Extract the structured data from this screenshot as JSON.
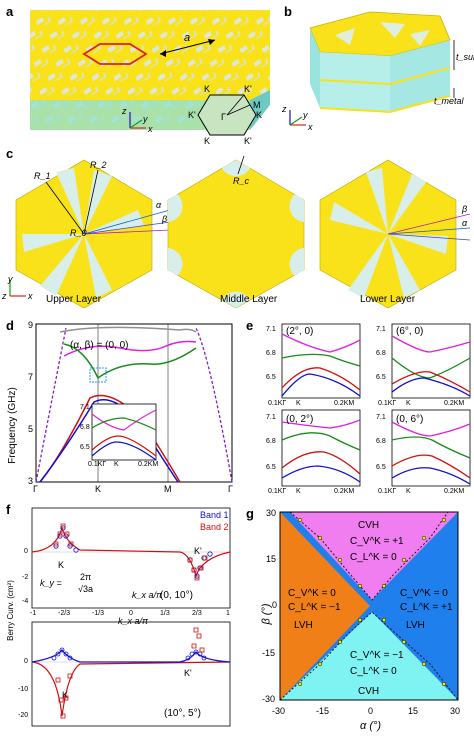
{
  "panels": {
    "a": {
      "letter": "a",
      "lattice_label": "a",
      "bz_labels": {
        "k1": "K",
        "k2": "K'",
        "g": "Γ",
        "m": "M",
        "k3": "K'",
        "k4": "K",
        "k5": "K",
        "k6": "K'"
      },
      "axes": {
        "z": "z",
        "y": "y",
        "x": "x"
      }
    },
    "b": {
      "letter": "b",
      "t_sub": "t_sub",
      "t_metal": "t_metal",
      "axes": {
        "z": "z",
        "y": "y",
        "x": "x"
      }
    },
    "c": {
      "letter": "c",
      "labels": {
        "R1": "R_1",
        "R2": "R_2",
        "R0": "R_0",
        "Rc": "R_c",
        "alpha": "α",
        "beta": "β",
        "alpha2": "α",
        "beta2": "β"
      },
      "layers": [
        "Upper Layer",
        "Middle Layer",
        "Lower Layer"
      ],
      "axes": {
        "y": "y",
        "z": "z",
        "x": "x"
      }
    },
    "d": {
      "letter": "d",
      "annotation": "(α, β) = (0, 0)",
      "ylabel": "Frequency (GHz)",
      "yticks": [
        "3",
        "5",
        "7",
        "9"
      ],
      "xticks": [
        "Γ",
        "K",
        "M",
        "Γ"
      ],
      "inset_yticks": [
        "7.1",
        "6.8",
        "6.5"
      ],
      "inset_xticks": [
        "0.1KΓ",
        "K",
        "0.2KM"
      ]
    },
    "e": {
      "letter": "e",
      "subplots": [
        {
          "label": "(2°, 0)"
        },
        {
          "label": "(6°, 0)"
        },
        {
          "label": "(0, 2°)"
        },
        {
          "label": "(0, 6°)"
        }
      ],
      "yticks": [
        "7.1",
        "6.8",
        "6.5"
      ],
      "xticks": [
        "0.1KΓ",
        "K",
        "0.2KM"
      ]
    },
    "f": {
      "letter": "f",
      "legend": [
        "Band 1",
        "Band 2"
      ],
      "ylabel": "Berry Curv. (cm²)",
      "top": {
        "label": "(0, 10°)",
        "yticks": [
          "0",
          "-2",
          "-4"
        ],
        "valley1": "K",
        "valley2": "K'",
        "ky_label": "k_y =",
        "ky_num": "2π",
        "ky_den": "√3a",
        "xlabel": "k_x a/π",
        "xticks": [
          "-1",
          "-2/3",
          "-1/3",
          "0",
          "1/3",
          "2/3",
          "1"
        ]
      },
      "bottom": {
        "label": "(10°, 5°)",
        "yticks": [
          "0",
          "-10",
          "-20"
        ],
        "valley1": "K",
        "valley2": "K'",
        "xticks": [
          "-1",
          "-2/3",
          "-1/3",
          "0",
          "1/3",
          "2/3",
          "1"
        ],
        "xlabel": "k_x a/π"
      }
    },
    "g": {
      "letter": "g",
      "xlabel": "α (°)",
      "ylabel": "β (°)",
      "xticks": [
        "-30",
        "-15",
        "0",
        "15",
        "30"
      ],
      "yticks": [
        "30",
        "15",
        "0",
        "-15",
        "-30"
      ],
      "regions": {
        "top": {
          "name": "CVH",
          "l1": "C_V^K = +1",
          "l2": "C_L^K = 0"
        },
        "bottom": {
          "name": "CVH",
          "l1": "C_V^K = −1",
          "l2": "C_L^K = 0"
        },
        "left": {
          "name": "LVH",
          "l1": "C_V^K = 0",
          "l2": "C_L^K = −1"
        },
        "right": {
          "name": "LVH",
          "l1": "C_V^K = 0",
          "l2": "C_L^K = +1"
        }
      },
      "colors": {
        "top": "#f07ef0",
        "bottom": "#7ff2f2",
        "left": "#f07f17",
        "right": "#1f7fed"
      }
    }
  },
  "chart_data": [
    {
      "type": "line",
      "panel": "d",
      "ylim": [
        3,
        9
      ],
      "x": [
        "Γ",
        "K",
        "M",
        "Γ"
      ],
      "series": [
        {
          "color": "#e020e0",
          "values_at_K": 7.05
        },
        {
          "color": "#1a8a1a",
          "values_at_K": 6.8
        },
        {
          "color": "#d01010",
          "values_at_K": 6.6
        },
        {
          "color": "#1010d0",
          "values_at_K": 6.5
        }
      ]
    },
    {
      "type": "scatter",
      "panel": "f-top",
      "ylim": [
        -5,
        6
      ],
      "x": [
        -1,
        -0.667,
        -0.333,
        0,
        0.333,
        0.667,
        1
      ],
      "series": [
        {
          "name": "Band 1"
        },
        {
          "name": "Band 2"
        }
      ]
    },
    {
      "type": "heatmap",
      "panel": "g",
      "xlim": [
        -30,
        30
      ],
      "ylim": [
        -30,
        30
      ]
    }
  ]
}
